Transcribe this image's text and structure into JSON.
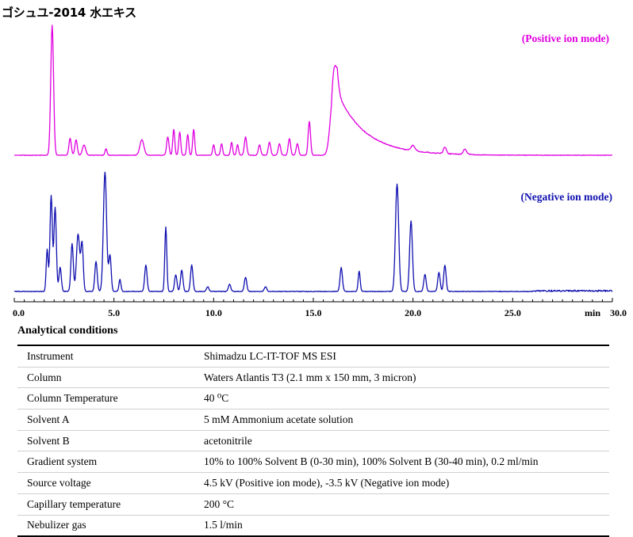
{
  "title": "ゴシュユ-2014 水エキス",
  "chart_data": {
    "type": "line",
    "xlabel": "min",
    "xlim": [
      0.0,
      30.0
    ],
    "xticks": [
      "0.0",
      "5.0",
      "10.0",
      "15.0",
      "20.0",
      "25.0",
      "30.0"
    ],
    "series": [
      {
        "name": "(Positive ion mode)",
        "color": "#e000e0",
        "baseline": [
          1.0,
          0.0
        ],
        "peaks": [
          [
            1.9,
            1.0,
            0.07
          ],
          [
            2.8,
            0.13,
            0.06
          ],
          [
            3.1,
            0.12,
            0.06
          ],
          [
            3.5,
            0.08,
            0.08
          ],
          [
            4.6,
            0.05,
            0.05
          ],
          [
            6.4,
            0.12,
            0.1
          ],
          [
            7.7,
            0.14,
            0.06
          ],
          [
            8.0,
            0.2,
            0.05
          ],
          [
            8.3,
            0.18,
            0.05
          ],
          [
            8.7,
            0.16,
            0.05
          ],
          [
            9.0,
            0.2,
            0.05
          ],
          [
            10.0,
            0.08,
            0.05
          ],
          [
            10.4,
            0.09,
            0.05
          ],
          [
            10.9,
            0.1,
            0.05
          ],
          [
            11.2,
            0.08,
            0.05
          ],
          [
            11.6,
            0.14,
            0.06
          ],
          [
            12.3,
            0.08,
            0.06
          ],
          [
            12.8,
            0.1,
            0.06
          ],
          [
            13.3,
            0.09,
            0.06
          ],
          [
            13.8,
            0.13,
            0.06
          ],
          [
            14.2,
            0.09,
            0.06
          ],
          [
            14.8,
            0.26,
            0.06
          ],
          [
            16.0,
            0.46,
            0.15
          ],
          [
            20.0,
            0.04,
            0.1
          ],
          [
            21.6,
            0.05,
            0.07
          ],
          [
            22.6,
            0.04,
            0.08
          ]
        ],
        "tail": {
          "start": 15.9,
          "peak": 16.2,
          "height": 0.48,
          "decay": 1.4
        }
      },
      {
        "name": "(Negative ion mode)",
        "color": "#1010b0",
        "baseline": [
          1.0,
          0.0
        ],
        "peaks": [
          [
            1.65,
            0.35,
            0.05
          ],
          [
            1.85,
            0.8,
            0.06
          ],
          [
            2.05,
            0.7,
            0.06
          ],
          [
            2.3,
            0.2,
            0.06
          ],
          [
            2.9,
            0.4,
            0.06
          ],
          [
            3.2,
            0.48,
            0.08
          ],
          [
            3.4,
            0.4,
            0.06
          ],
          [
            4.1,
            0.25,
            0.06
          ],
          [
            4.55,
            1.0,
            0.08
          ],
          [
            4.8,
            0.3,
            0.06
          ],
          [
            5.3,
            0.1,
            0.05
          ],
          [
            6.6,
            0.22,
            0.06
          ],
          [
            7.6,
            0.54,
            0.05
          ],
          [
            8.1,
            0.14,
            0.06
          ],
          [
            8.4,
            0.18,
            0.06
          ],
          [
            8.9,
            0.22,
            0.06
          ],
          [
            9.7,
            0.04,
            0.06
          ],
          [
            10.8,
            0.06,
            0.06
          ],
          [
            11.6,
            0.12,
            0.06
          ],
          [
            12.6,
            0.04,
            0.06
          ],
          [
            16.4,
            0.2,
            0.06
          ],
          [
            17.3,
            0.17,
            0.05
          ],
          [
            19.2,
            0.9,
            0.08
          ],
          [
            19.9,
            0.59,
            0.07
          ],
          [
            20.6,
            0.14,
            0.06
          ],
          [
            21.3,
            0.16,
            0.06
          ],
          [
            21.6,
            0.22,
            0.06
          ]
        ]
      }
    ]
  },
  "conditions": {
    "heading": "Analytical conditions",
    "rows": [
      {
        "param": "Instrument",
        "value": "Shimadzu LC-IT-TOF MS ESI"
      },
      {
        "param": "Column",
        "value": "Waters Atlantis T3 (2.1 mm x 150 mm, 3 micron)"
      },
      {
        "param": "Column Temperature",
        "value": "40 ⁰C"
      },
      {
        "param": "Solvent A",
        "value": "5 mM Ammonium acetate solution"
      },
      {
        "param": "Solvent B",
        "value": "acetonitrile"
      },
      {
        "param": "Gradient system",
        "value": "10% to 100% Solvent B (0-30 min), 100% Solvent B (30-40 min), 0.2 ml/min"
      },
      {
        "param": "Source voltage",
        "value": "4.5 kV (Positive ion mode), -3.5 kV (Negative ion mode)"
      },
      {
        "param": "Capillary temperature",
        "value": "200 °C"
      },
      {
        "param": "Nebulizer gas",
        "value": "1.5 l/min"
      }
    ]
  }
}
